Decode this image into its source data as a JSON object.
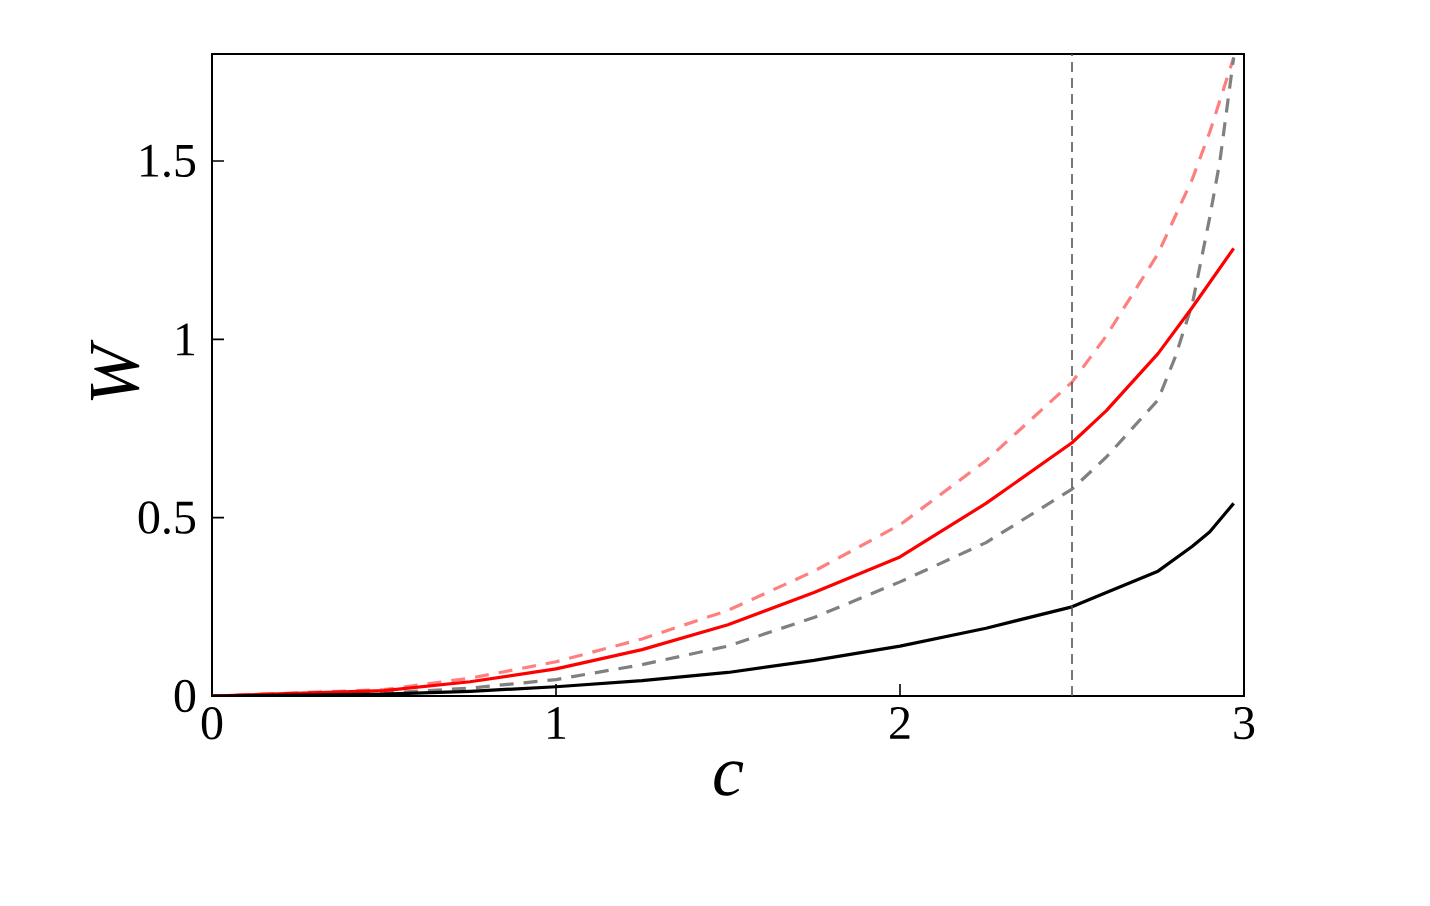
{
  "chart_data": {
    "type": "line",
    "xlabel": "c",
    "ylabel": "W",
    "xlim": [
      0,
      3
    ],
    "ylim": [
      0,
      1.8
    ],
    "xticks": [
      0,
      1,
      2,
      3
    ],
    "yticks": [
      0,
      0.5,
      1,
      1.5
    ],
    "marker": "none",
    "series": [
      {
        "color": "#ff7f7f",
        "line_style": "dashed",
        "x": [
          0,
          0.5,
          0.75,
          1,
          1.25,
          1.5,
          1.75,
          2,
          2.25,
          2.5,
          2.6,
          2.75,
          2.85,
          2.9,
          2.97
        ],
        "values": [
          0,
          0.018,
          0.05,
          0.096,
          0.16,
          0.24,
          0.35,
          0.48,
          0.66,
          0.88,
          1.01,
          1.24,
          1.45,
          1.58,
          1.79
        ]
      },
      {
        "color": "#808080",
        "line_style": "dashed",
        "x": [
          0,
          0.5,
          0.75,
          1,
          1.25,
          1.5,
          1.75,
          2,
          2.25,
          2.5,
          2.6,
          2.75,
          2.8,
          2.85,
          2.9,
          2.93,
          2.97
        ],
        "values": [
          0,
          0.008,
          0.022,
          0.046,
          0.088,
          0.14,
          0.22,
          0.32,
          0.43,
          0.58,
          0.67,
          0.83,
          0.95,
          1.1,
          1.34,
          1.5,
          1.79
        ]
      },
      {
        "color": "#ff0000",
        "line_style": "solid",
        "x": [
          0,
          0.5,
          0.75,
          1,
          1.25,
          1.5,
          1.75,
          2,
          2.25,
          2.5,
          2.6,
          2.75,
          2.85,
          2.97
        ],
        "values": [
          0,
          0.015,
          0.04,
          0.076,
          0.13,
          0.2,
          0.29,
          0.39,
          0.54,
          0.71,
          0.8,
          0.96,
          1.09,
          1.255
        ]
      },
      {
        "color": "#000000",
        "line_style": "solid",
        "x": [
          0,
          0.5,
          0.75,
          1,
          1.25,
          1.5,
          1.75,
          2,
          2.25,
          2.5,
          2.6,
          2.75,
          2.85,
          2.9,
          2.97
        ],
        "values": [
          0,
          0.005,
          0.013,
          0.026,
          0.043,
          0.066,
          0.1,
          0.14,
          0.19,
          0.25,
          0.29,
          0.35,
          0.42,
          0.46,
          0.54
        ]
      }
    ],
    "ref_lines": [
      {
        "axis": "x",
        "value": 2.5,
        "color": "#555555",
        "line_style": "dashed"
      }
    ]
  }
}
